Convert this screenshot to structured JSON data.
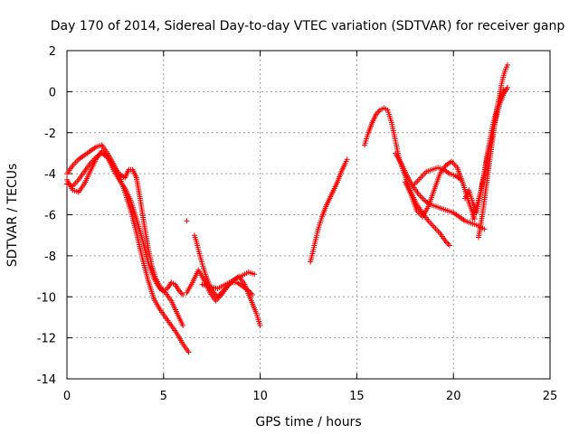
{
  "chart_data": {
    "type": "scatter",
    "title": "Day 170 of 2014, Sidereal Day-to-day VTEC variation (SDTVAR) for receiver ganp",
    "xlabel": "GPS time / hours",
    "ylabel": "SDTVAR / TECUs",
    "xlim": [
      0,
      25
    ],
    "ylim": [
      -14,
      2
    ],
    "x_ticks": [
      0,
      5,
      10,
      15,
      20,
      25
    ],
    "y_ticks": [
      -14,
      -12,
      -10,
      -8,
      -6,
      -4,
      -2,
      0,
      2
    ],
    "grid": true,
    "marker": "+",
    "series": [
      {
        "name": "arc-1",
        "x": [
          0.0,
          0.3,
          0.6,
          0.9,
          1.2,
          1.5,
          1.8,
          2.1,
          2.4,
          2.7,
          3.0,
          3.3,
          3.6,
          3.9,
          4.2,
          4.5,
          4.8,
          5.1,
          5.4,
          5.7,
          6.0,
          6.3
        ],
        "y": [
          -4.0,
          -3.6,
          -3.3,
          -3.1,
          -2.9,
          -2.7,
          -2.6,
          -3.0,
          -3.5,
          -4.1,
          -4.9,
          -5.8,
          -6.9,
          -8.1,
          -9.2,
          -10.1,
          -10.6,
          -11.0,
          -11.4,
          -11.8,
          -12.3,
          -12.7
        ]
      },
      {
        "name": "arc-2",
        "x": [
          0.0,
          0.3,
          0.6,
          0.9,
          1.2,
          1.5,
          1.8,
          2.1,
          2.4,
          2.7,
          3.0,
          3.2,
          3.4,
          3.6,
          3.8,
          4.0,
          4.2,
          4.4,
          4.6,
          4.8,
          5.0,
          5.2,
          5.4,
          5.6,
          5.8,
          6.0
        ],
        "y": [
          -4.5,
          -4.6,
          -4.3,
          -3.9,
          -3.5,
          -3.2,
          -3.0,
          -3.2,
          -3.6,
          -4.0,
          -4.2,
          -3.8,
          -3.8,
          -4.2,
          -5.3,
          -6.5,
          -7.6,
          -8.5,
          -9.1,
          -9.5,
          -9.7,
          -9.6,
          -9.3,
          -9.4,
          -9.7,
          -9.9
        ]
      },
      {
        "name": "arc-3",
        "x": [
          0.0,
          0.3,
          0.6,
          0.9,
          1.2,
          1.5,
          1.8,
          2.1,
          2.4,
          2.7,
          3.0,
          3.3,
          3.6,
          3.9,
          4.2,
          4.5,
          4.8,
          5.1,
          5.4,
          5.7,
          6.0
        ],
        "y": [
          -4.3,
          -4.8,
          -4.9,
          -4.5,
          -3.9,
          -3.3,
          -2.9,
          -3.2,
          -3.8,
          -4.3,
          -4.7,
          -5.3,
          -6.2,
          -7.2,
          -8.3,
          -9.1,
          -9.6,
          -9.8,
          -10.2,
          -10.8,
          -11.4
        ]
      },
      {
        "name": "arc-4",
        "x": [
          6.2,
          6.5,
          6.8,
          7.1,
          7.4,
          7.7,
          8.0,
          8.3,
          8.6,
          8.9,
          9.2,
          9.5,
          9.8,
          10.0
        ],
        "y": [
          -9.8,
          -9.3,
          -8.7,
          -9.2,
          -9.8,
          -10.2,
          -9.9,
          -9.5,
          -9.2,
          -9.0,
          -9.4,
          -10.1,
          -10.8,
          -11.4
        ]
      },
      {
        "name": "arc-5",
        "x": [
          6.6,
          6.7,
          6.8,
          7.0,
          7.2,
          7.4,
          7.6,
          7.8,
          8.0,
          8.2,
          8.5,
          8.8,
          9.1,
          9.4,
          9.6
        ],
        "y": [
          -7.0,
          -7.3,
          -7.7,
          -8.4,
          -9.0,
          -9.5,
          -9.8,
          -10.0,
          -9.8,
          -9.6,
          -9.3,
          -9.3,
          -9.5,
          -9.7,
          -9.9
        ]
      },
      {
        "name": "arc-6",
        "x": [
          7.0,
          7.4,
          7.8,
          8.2,
          8.6,
          9.0,
          9.4,
          9.7
        ],
        "y": [
          -9.4,
          -9.5,
          -9.6,
          -9.4,
          -9.2,
          -9.0,
          -8.8,
          -8.9
        ]
      },
      {
        "name": "outlier",
        "x": [
          6.2
        ],
        "y": [
          -6.3
        ]
      },
      {
        "name": "arc-7",
        "x": [
          12.6,
          12.8,
          13.0,
          13.2,
          13.4,
          13.6,
          13.8,
          14.0,
          14.2,
          14.4,
          14.5
        ],
        "y": [
          -8.3,
          -7.5,
          -6.7,
          -6.1,
          -5.6,
          -5.2,
          -4.8,
          -4.4,
          -3.9,
          -3.5,
          -3.3
        ]
      },
      {
        "name": "arc-8",
        "x": [
          15.4,
          15.6,
          15.8,
          16.0,
          16.2,
          16.4,
          16.6,
          16.8,
          17.0,
          17.2,
          17.5,
          17.8,
          18.1,
          18.4,
          18.7,
          19.0,
          19.3,
          19.6,
          19.8
        ],
        "y": [
          -2.6,
          -2.0,
          -1.5,
          -1.1,
          -0.9,
          -0.8,
          -0.9,
          -1.5,
          -2.4,
          -3.3,
          -4.1,
          -4.9,
          -5.5,
          -5.9,
          -6.3,
          -6.6,
          -6.9,
          -7.3,
          -7.5
        ]
      },
      {
        "name": "arc-9",
        "x": [
          17.0,
          17.3,
          17.6,
          17.9,
          18.2,
          18.5,
          18.8,
          19.1,
          19.4,
          19.7,
          20.0,
          20.3,
          20.6,
          20.9,
          21.2,
          21.4,
          21.6
        ],
        "y": [
          -3.0,
          -3.5,
          -4.1,
          -4.6,
          -5.0,
          -5.3,
          -5.5,
          -5.6,
          -5.7,
          -5.8,
          -5.9,
          -6.1,
          -6.3,
          -6.4,
          -6.5,
          -6.6,
          -6.7
        ]
      },
      {
        "name": "arc-10",
        "x": [
          17.5,
          17.8,
          18.1,
          18.4,
          18.7,
          19.0,
          19.3,
          19.6,
          19.9,
          20.2,
          20.5,
          20.8,
          21.1
        ],
        "y": [
          -4.4,
          -5.0,
          -5.8,
          -6.1,
          -5.6,
          -4.8,
          -4.0,
          -3.6,
          -3.4,
          -3.7,
          -4.5,
          -5.4,
          -6.2
        ]
      },
      {
        "name": "arc-11",
        "x": [
          18.0,
          18.3,
          18.6,
          18.9,
          19.2,
          19.5,
          19.8,
          20.1,
          20.4
        ],
        "y": [
          -4.5,
          -4.2,
          -3.9,
          -3.8,
          -3.7,
          -3.8,
          -4.0,
          -4.1,
          -4.3
        ]
      },
      {
        "name": "arc-12",
        "x": [
          21.3,
          21.5,
          21.7,
          21.9,
          22.1,
          22.3,
          22.5,
          22.6,
          22.7,
          22.8
        ],
        "y": [
          -7.1,
          -6.0,
          -4.6,
          -3.2,
          -1.8,
          -0.6,
          0.4,
          0.8,
          1.1,
          1.3
        ]
      },
      {
        "name": "arc-13",
        "x": [
          21.0,
          21.2,
          21.4,
          21.6,
          21.8,
          22.0,
          22.2,
          22.4,
          22.6,
          22.8
        ],
        "y": [
          -6.2,
          -5.6,
          -4.9,
          -4.0,
          -3.0,
          -2.1,
          -1.3,
          -0.6,
          -0.1,
          0.2
        ]
      },
      {
        "name": "arc-14",
        "x": [
          20.6,
          20.8,
          21.0,
          21.2,
          21.4,
          21.6,
          21.8,
          22.0,
          22.2,
          22.4,
          22.6
        ],
        "y": [
          -5.2,
          -4.8,
          -5.4,
          -5.9,
          -5.0,
          -3.9,
          -2.8,
          -1.8,
          -1.0,
          -0.4,
          0.1
        ]
      }
    ]
  }
}
